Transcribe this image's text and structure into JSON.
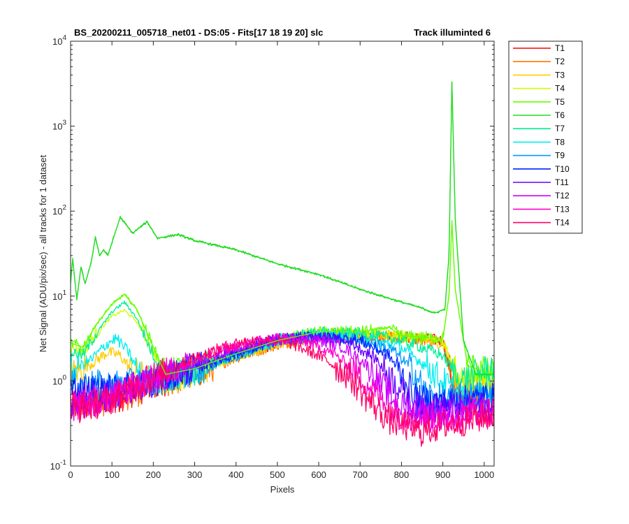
{
  "chart_data": {
    "type": "line",
    "title": "BS_20200211_005718_net01 - DS:05 - Fits[17   18  19  20]   slc",
    "title_right": "Track illuminted 6",
    "xlabel": "Pixels",
    "ylabel": "Net Signal (ADU/pix/sec) - all tracks for 1 dataset",
    "xlim": [
      0,
      1024
    ],
    "ylim": [
      0.1,
      10000
    ],
    "yscale": "log",
    "x_ticks": [
      "0",
      "100",
      "200",
      "300",
      "400",
      "500",
      "600",
      "700",
      "800",
      "900",
      "1000"
    ],
    "y_ticks": [
      {
        "base": "10",
        "exp": "-1"
      },
      {
        "base": "10",
        "exp": "0"
      },
      {
        "base": "10",
        "exp": "1"
      },
      {
        "base": "10",
        "exp": "2"
      },
      {
        "base": "10",
        "exp": "3"
      },
      {
        "base": "10",
        "exp": "4"
      }
    ],
    "grid": false,
    "legend_position": "outside-right",
    "series": [
      {
        "name": "T1",
        "color": "#ff0000",
        "points": [
          [
            0,
            0.5
          ],
          [
            100,
            0.6
          ],
          [
            200,
            0.9
          ],
          [
            300,
            1.3
          ],
          [
            400,
            2.0
          ],
          [
            500,
            2.8
          ],
          [
            600,
            3.4
          ],
          [
            700,
            3.5
          ],
          [
            800,
            3.3
          ],
          [
            900,
            3.0
          ],
          [
            930,
            0.7
          ],
          [
            1024,
            0.6
          ]
        ]
      },
      {
        "name": "T2",
        "color": "#ff7700",
        "points": [
          [
            0,
            0.5
          ],
          [
            100,
            0.6
          ],
          [
            200,
            0.85
          ],
          [
            300,
            1.2
          ],
          [
            400,
            1.9
          ],
          [
            500,
            2.7
          ],
          [
            600,
            3.3
          ],
          [
            700,
            3.4
          ],
          [
            800,
            3.2
          ],
          [
            900,
            2.9
          ],
          [
            930,
            0.8
          ],
          [
            1024,
            0.6
          ]
        ]
      },
      {
        "name": "T3",
        "color": "#ffcc00",
        "points": [
          [
            0,
            1.2
          ],
          [
            50,
            1.6
          ],
          [
            90,
            2.2
          ],
          [
            120,
            2.0
          ],
          [
            150,
            1.3
          ],
          [
            200,
            1.0
          ],
          [
            300,
            1.3
          ],
          [
            400,
            2.0
          ],
          [
            500,
            2.8
          ],
          [
            600,
            3.4
          ],
          [
            700,
            3.5
          ],
          [
            800,
            3.3
          ],
          [
            900,
            2.8
          ],
          [
            940,
            0.9
          ],
          [
            1024,
            0.9
          ]
        ]
      },
      {
        "name": "T4",
        "color": "#ccff00",
        "points": [
          [
            0,
            2.5
          ],
          [
            30,
            2.2
          ],
          [
            60,
            3.5
          ],
          [
            100,
            5.8
          ],
          [
            130,
            6.8
          ],
          [
            160,
            5.0
          ],
          [
            200,
            2.2
          ],
          [
            230,
            1.1
          ],
          [
            300,
            1.3
          ],
          [
            400,
            2.0
          ],
          [
            500,
            3.0
          ],
          [
            600,
            3.7
          ],
          [
            700,
            3.7
          ],
          [
            800,
            3.4
          ],
          [
            900,
            3.0
          ],
          [
            940,
            1.1
          ],
          [
            1024,
            1.1
          ]
        ]
      },
      {
        "name": "T5",
        "color": "#66ff00",
        "points": [
          [
            0,
            2.8
          ],
          [
            30,
            2.5
          ],
          [
            60,
            4.5
          ],
          [
            100,
            8.0
          ],
          [
            130,
            10.5
          ],
          [
            160,
            7.0
          ],
          [
            200,
            2.5
          ],
          [
            230,
            1.2
          ],
          [
            300,
            1.4
          ],
          [
            400,
            2.1
          ],
          [
            500,
            3.0
          ],
          [
            600,
            3.8
          ],
          [
            700,
            3.8
          ],
          [
            770,
            4.3
          ],
          [
            800,
            3.4
          ],
          [
            900,
            3.2
          ],
          [
            915,
            10
          ],
          [
            922,
            75
          ],
          [
            930,
            12
          ],
          [
            960,
            1.5
          ],
          [
            1024,
            1.2
          ]
        ]
      },
      {
        "name": "T6",
        "color": "#22dd22",
        "points": [
          [
            0,
            14
          ],
          [
            5,
            28
          ],
          [
            15,
            9
          ],
          [
            25,
            22
          ],
          [
            35,
            14
          ],
          [
            50,
            25
          ],
          [
            60,
            50
          ],
          [
            70,
            30
          ],
          [
            80,
            35
          ],
          [
            90,
            30
          ],
          [
            120,
            85
          ],
          [
            150,
            55
          ],
          [
            185,
            75
          ],
          [
            210,
            48
          ],
          [
            260,
            53
          ],
          [
            300,
            45
          ],
          [
            400,
            35
          ],
          [
            500,
            24
          ],
          [
            600,
            18
          ],
          [
            700,
            12
          ],
          [
            800,
            8.5
          ],
          [
            850,
            7.2
          ],
          [
            880,
            6.3
          ],
          [
            905,
            7.0
          ],
          [
            915,
            30
          ],
          [
            922,
            3300
          ],
          [
            930,
            80
          ],
          [
            950,
            3.0
          ],
          [
            980,
            1.2
          ],
          [
            1024,
            1.2
          ]
        ]
      },
      {
        "name": "T7",
        "color": "#00ee99",
        "points": [
          [
            0,
            2.2
          ],
          [
            30,
            2.0
          ],
          [
            60,
            3.5
          ],
          [
            100,
            6.5
          ],
          [
            130,
            8.5
          ],
          [
            160,
            5.5
          ],
          [
            200,
            2.0
          ],
          [
            230,
            1.1
          ],
          [
            300,
            1.3
          ],
          [
            400,
            2.1
          ],
          [
            500,
            3.1
          ],
          [
            600,
            3.7
          ],
          [
            700,
            3.6
          ],
          [
            780,
            3.2
          ],
          [
            850,
            2.5
          ],
          [
            900,
            2.0
          ],
          [
            940,
            1.0
          ],
          [
            1024,
            1.5
          ]
        ]
      },
      {
        "name": "T8",
        "color": "#00eeee",
        "points": [
          [
            0,
            1.3
          ],
          [
            50,
            1.8
          ],
          [
            90,
            2.8
          ],
          [
            110,
            3.2
          ],
          [
            140,
            2.2
          ],
          [
            170,
            1.1
          ],
          [
            200,
            1.0
          ],
          [
            300,
            1.3
          ],
          [
            400,
            2.1
          ],
          [
            500,
            3.0
          ],
          [
            600,
            3.5
          ],
          [
            700,
            3.3
          ],
          [
            800,
            2.5
          ],
          [
            860,
            1.5
          ],
          [
            900,
            1.0
          ],
          [
            950,
            0.6
          ],
          [
            1024,
            0.8
          ]
        ]
      },
      {
        "name": "T9",
        "color": "#0099ff",
        "points": [
          [
            0,
            0.9
          ],
          [
            100,
            0.9
          ],
          [
            200,
            1.0
          ],
          [
            300,
            1.3
          ],
          [
            400,
            2.0
          ],
          [
            500,
            3.0
          ],
          [
            600,
            3.4
          ],
          [
            700,
            3.1
          ],
          [
            780,
            2.3
          ],
          [
            830,
            1.3
          ],
          [
            860,
            0.7
          ],
          [
            900,
            0.6
          ],
          [
            1024,
            0.7
          ]
        ]
      },
      {
        "name": "T10",
        "color": "#0022ff",
        "points": [
          [
            0,
            0.8
          ],
          [
            100,
            0.8
          ],
          [
            200,
            1.0
          ],
          [
            300,
            1.4
          ],
          [
            400,
            2.1
          ],
          [
            500,
            3.0
          ],
          [
            600,
            3.4
          ],
          [
            700,
            3.0
          ],
          [
            770,
            2.0
          ],
          [
            810,
            1.0
          ],
          [
            840,
            0.6
          ],
          [
            900,
            0.55
          ],
          [
            1024,
            0.65
          ]
        ]
      },
      {
        "name": "T11",
        "color": "#6600ff",
        "points": [
          [
            0,
            0.6
          ],
          [
            100,
            0.7
          ],
          [
            200,
            0.95
          ],
          [
            300,
            1.5
          ],
          [
            400,
            2.3
          ],
          [
            500,
            3.1
          ],
          [
            600,
            3.3
          ],
          [
            680,
            2.8
          ],
          [
            740,
            1.8
          ],
          [
            790,
            0.9
          ],
          [
            830,
            0.5
          ],
          [
            900,
            0.5
          ],
          [
            1024,
            0.5
          ]
        ]
      },
      {
        "name": "T12",
        "color": "#cc00ff",
        "points": [
          [
            0,
            0.5
          ],
          [
            100,
            0.65
          ],
          [
            200,
            1.0
          ],
          [
            300,
            1.6
          ],
          [
            400,
            2.4
          ],
          [
            500,
            3.1
          ],
          [
            580,
            3.2
          ],
          [
            660,
            2.5
          ],
          [
            720,
            1.5
          ],
          [
            760,
            0.8
          ],
          [
            800,
            0.5
          ],
          [
            900,
            0.4
          ],
          [
            1024,
            0.45
          ]
        ]
      },
      {
        "name": "T13",
        "color": "#ff00cc",
        "points": [
          [
            0,
            0.5
          ],
          [
            100,
            0.65
          ],
          [
            200,
            1.1
          ],
          [
            300,
            1.8
          ],
          [
            400,
            2.6
          ],
          [
            500,
            3.2
          ],
          [
            560,
            3.0
          ],
          [
            630,
            2.2
          ],
          [
            690,
            1.3
          ],
          [
            740,
            0.7
          ],
          [
            790,
            0.4
          ],
          [
            900,
            0.35
          ],
          [
            1024,
            0.45
          ]
        ]
      },
      {
        "name": "T14",
        "color": "#ff0066",
        "points": [
          [
            0,
            0.45
          ],
          [
            100,
            0.6
          ],
          [
            200,
            1.1
          ],
          [
            300,
            1.9
          ],
          [
            400,
            2.8
          ],
          [
            470,
            3.1
          ],
          [
            530,
            2.8
          ],
          [
            600,
            2.0
          ],
          [
            670,
            1.2
          ],
          [
            720,
            0.6
          ],
          [
            770,
            0.35
          ],
          [
            850,
            0.25
          ],
          [
            900,
            0.3
          ],
          [
            1024,
            0.4
          ]
        ]
      }
    ]
  }
}
